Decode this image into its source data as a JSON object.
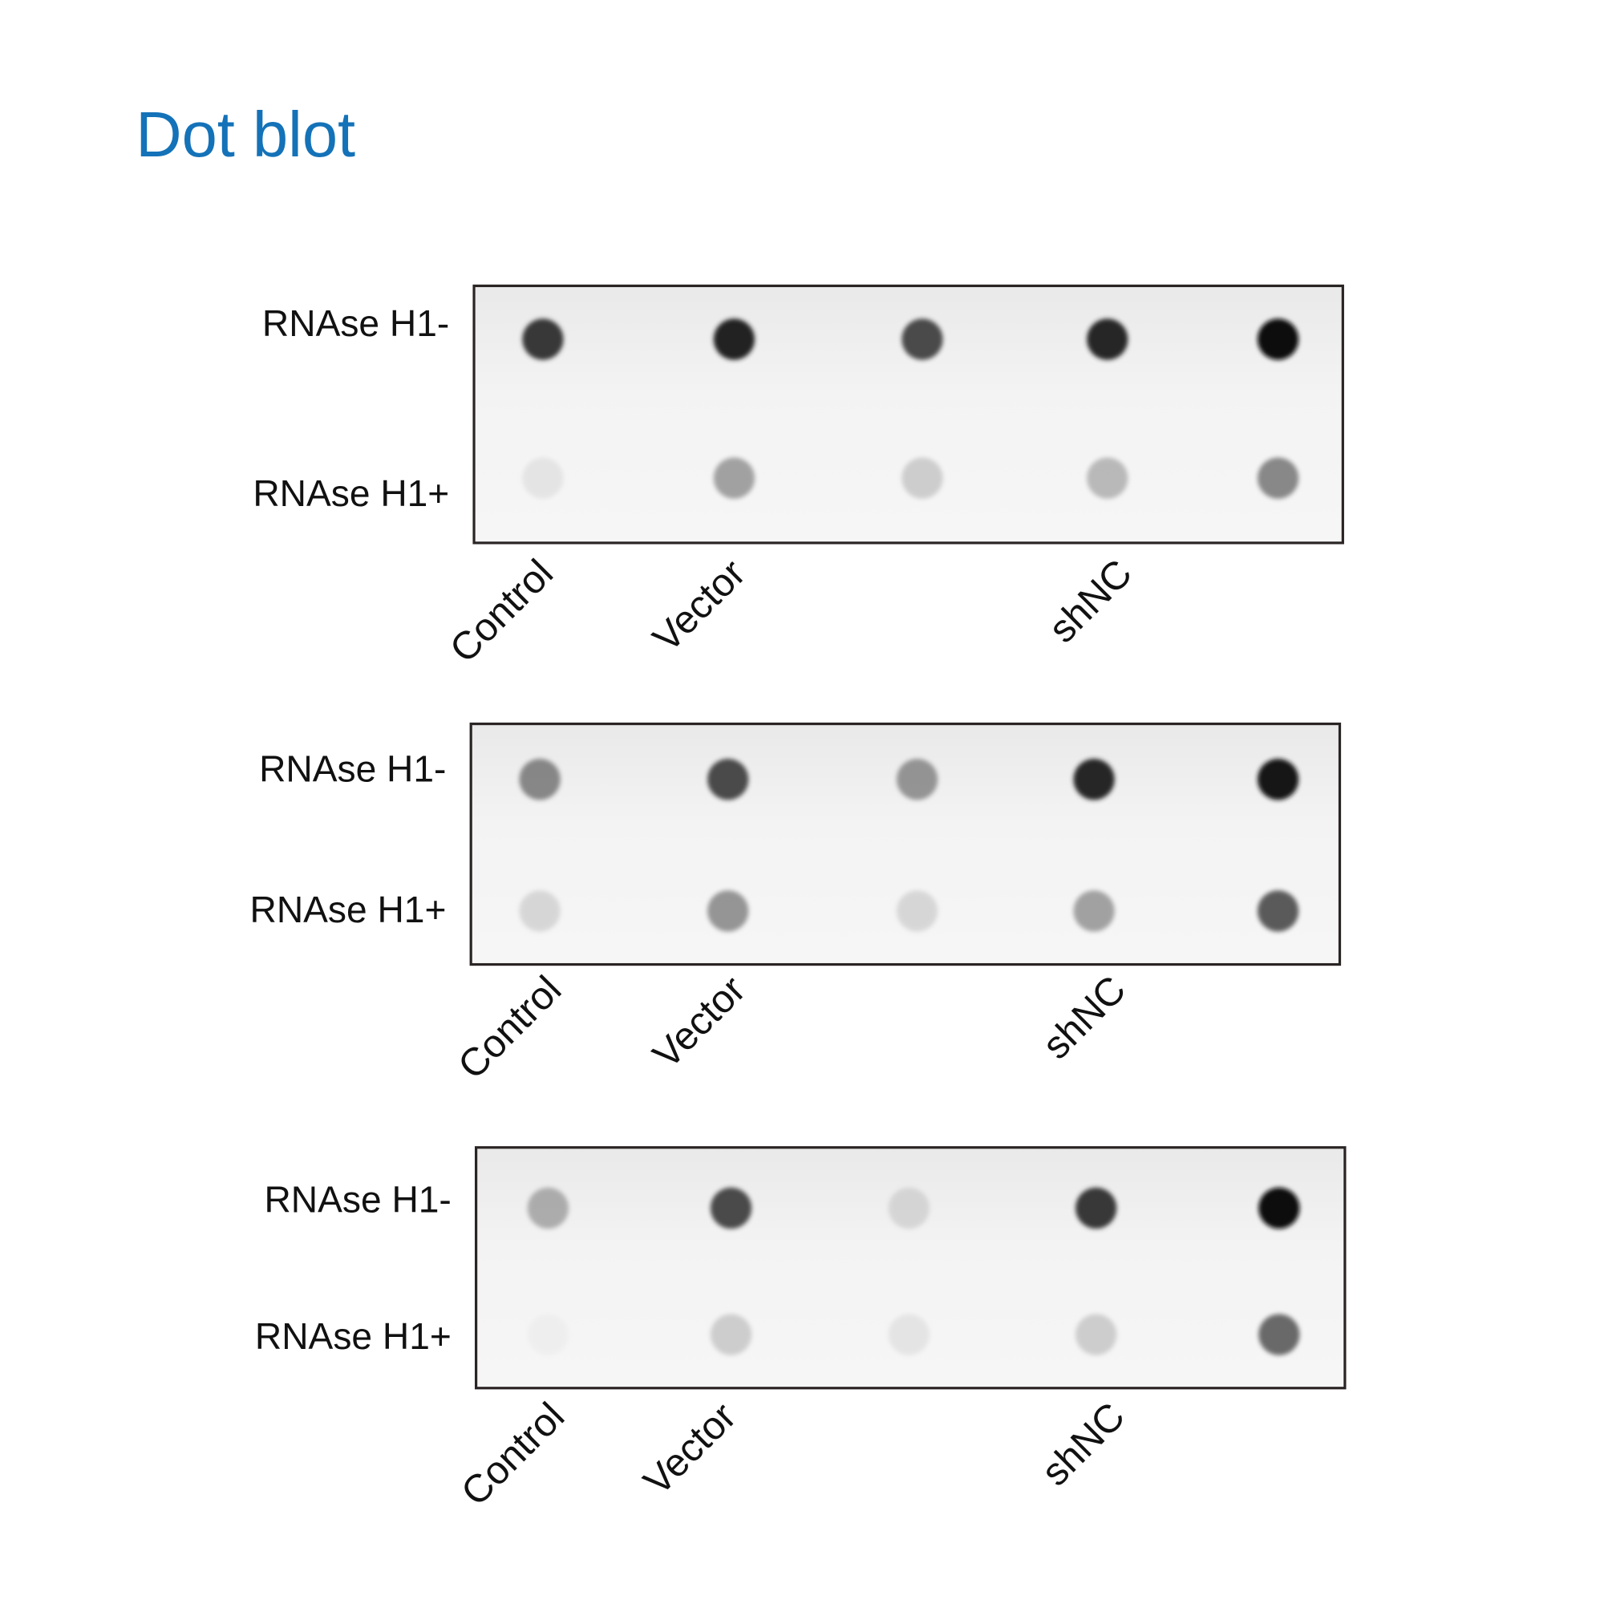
{
  "title": "Dot blot",
  "colors": {
    "title": "#1472b8",
    "frame": "#2a2424",
    "membrane": "#f1f1f1"
  },
  "chart_data": {
    "type": "dot_blot",
    "row_labels": [
      "RNAse H1-",
      "RNAse H1+"
    ],
    "column_labels": [
      "Control",
      "Vector",
      "",
      "shNC",
      ""
    ],
    "intensity_scale": "0 = no signal, 1 = saturated (estimated from dot darkness)",
    "panels": [
      {
        "intensities": [
          [
            0.8,
            0.9,
            0.75,
            0.88,
            1.0
          ],
          [
            0.12,
            0.45,
            0.25,
            0.35,
            0.55
          ]
        ]
      },
      {
        "intensities": [
          [
            0.55,
            0.75,
            0.5,
            0.88,
            0.95
          ],
          [
            0.2,
            0.5,
            0.2,
            0.45,
            0.7
          ]
        ]
      },
      {
        "intensities": [
          [
            0.4,
            0.75,
            0.2,
            0.8,
            1.0
          ],
          [
            0.05,
            0.25,
            0.12,
            0.25,
            0.65
          ]
        ]
      }
    ]
  }
}
